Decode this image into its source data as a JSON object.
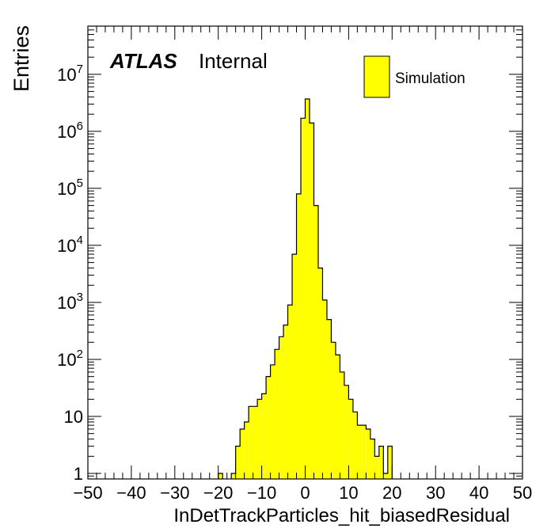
{
  "chart_data": {
    "type": "histogram",
    "xlabel": "InDetTrackParticles_hit_biasedResidual",
    "ylabel": "Entries",
    "xlim": [
      -50,
      50
    ],
    "ylim": [
      0.8,
      70000000
    ],
    "yscale": "log",
    "x_ticks": [
      "−50",
      "−40",
      "−30",
      "−20",
      "−10",
      "0",
      "10",
      "20",
      "30",
      "40",
      "50"
    ],
    "y_ticks": [
      {
        "value": 1,
        "base": "1",
        "exp": ""
      },
      {
        "value": 10,
        "base": "10",
        "exp": ""
      },
      {
        "value": 100,
        "base": "10",
        "exp": "2"
      },
      {
        "value": 1000,
        "base": "10",
        "exp": "3"
      },
      {
        "value": 10000,
        "base": "10",
        "exp": "4"
      },
      {
        "value": 100000,
        "base": "10",
        "exp": "5"
      },
      {
        "value": 1000000,
        "base": "10",
        "exp": "6"
      },
      {
        "value": 10000000,
        "base": "10",
        "exp": "7"
      }
    ],
    "grid": false,
    "legend_position": "top-right",
    "atlas_label": "ATLAS",
    "atlas_sublabel": "Internal",
    "fill_color": "#ffff00",
    "line_color": "#000000",
    "series": [
      {
        "name": "Simulation",
        "bins": [
          {
            "x0": -20,
            "x1": -19,
            "y": 1
          },
          {
            "x0": -17,
            "x1": -16,
            "y": 1
          },
          {
            "x0": -16,
            "x1": -15,
            "y": 3
          },
          {
            "x0": -15,
            "x1": -14,
            "y": 6
          },
          {
            "x0": -14,
            "x1": -13,
            "y": 8
          },
          {
            "x0": -13,
            "x1": -12,
            "y": 15
          },
          {
            "x0": -12,
            "x1": -11,
            "y": 15
          },
          {
            "x0": -11,
            "x1": -10,
            "y": 20
          },
          {
            "x0": -10,
            "x1": -9,
            "y": 25
          },
          {
            "x0": -9,
            "x1": -8,
            "y": 50
          },
          {
            "x0": -8,
            "x1": -7,
            "y": 80
          },
          {
            "x0": -7,
            "x1": -6,
            "y": 150
          },
          {
            "x0": -6,
            "x1": -5,
            "y": 250
          },
          {
            "x0": -5,
            "x1": -4,
            "y": 400
          },
          {
            "x0": -4,
            "x1": -3,
            "y": 900
          },
          {
            "x0": -3,
            "x1": -2,
            "y": 7000
          },
          {
            "x0": -2,
            "x1": -1,
            "y": 80000
          },
          {
            "x0": -1,
            "x1": 0,
            "y": 1700000
          },
          {
            "x0": 0,
            "x1": 1,
            "y": 3700000
          },
          {
            "x0": 1,
            "x1": 2,
            "y": 1400000
          },
          {
            "x0": 2,
            "x1": 3,
            "y": 50000
          },
          {
            "x0": 3,
            "x1": 4,
            "y": 4000
          },
          {
            "x0": 4,
            "x1": 5,
            "y": 1100
          },
          {
            "x0": 5,
            "x1": 6,
            "y": 500
          },
          {
            "x0": 6,
            "x1": 7,
            "y": 200
          },
          {
            "x0": 7,
            "x1": 8,
            "y": 120
          },
          {
            "x0": 8,
            "x1": 9,
            "y": 60
          },
          {
            "x0": 9,
            "x1": 10,
            "y": 35
          },
          {
            "x0": 10,
            "x1": 11,
            "y": 20
          },
          {
            "x0": 11,
            "x1": 12,
            "y": 12
          },
          {
            "x0": 12,
            "x1": 13,
            "y": 7
          },
          {
            "x0": 13,
            "x1": 14,
            "y": 7
          },
          {
            "x0": 14,
            "x1": 15,
            "y": 6
          },
          {
            "x0": 15,
            "x1": 16,
            "y": 4
          },
          {
            "x0": 16,
            "x1": 17,
            "y": 2
          },
          {
            "x0": 17,
            "x1": 18,
            "y": 3
          },
          {
            "x0": 18,
            "x1": 19,
            "y": 1
          },
          {
            "x0": 19,
            "x1": 20,
            "y": 3
          }
        ]
      }
    ]
  }
}
